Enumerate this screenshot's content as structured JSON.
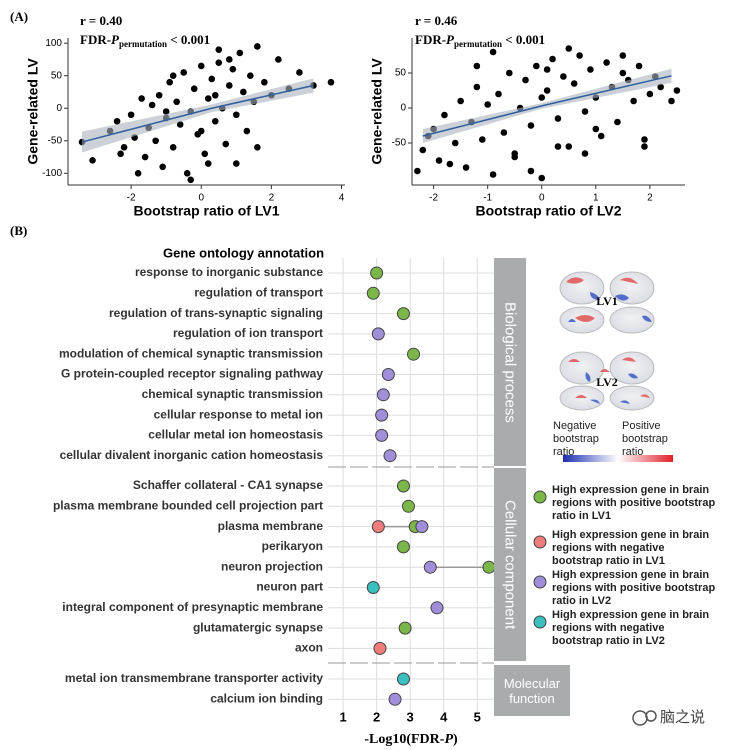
{
  "panel_labels": [
    "(A)",
    "(B)"
  ],
  "chart_data": [
    {
      "type": "scatter",
      "annotation_r": "r = 0.40",
      "annotation_fdr": {
        "prefix": "FDR-",
        "p": "P",
        "sub": "permutation",
        "suffix": " < 0.001"
      },
      "xlabel": "Bootstrap ratio of LV1",
      "ylabel": "Gene-related LV",
      "xlim": [
        -3.8,
        4.1
      ],
      "xticks": [
        -2,
        0,
        2,
        4
      ],
      "ylim": [
        -118,
        108
      ],
      "yticks": [
        -100,
        -50,
        0,
        50,
        100
      ],
      "color": "#000000",
      "x": [
        -3.4,
        -3.1,
        -2.6,
        -2.4,
        -2.2,
        -2.0,
        -1.9,
        -1.7,
        -1.6,
        -1.5,
        -1.4,
        -1.3,
        -1.2,
        -1.1,
        -1.0,
        -0.9,
        -0.8,
        -0.7,
        -0.6,
        -0.5,
        -0.4,
        -0.3,
        -0.2,
        -0.1,
        0.0,
        0.1,
        0.2,
        0.3,
        0.4,
        0.5,
        0.6,
        0.7,
        0.8,
        0.9,
        1.0,
        1.1,
        1.2,
        1.3,
        1.4,
        1.5,
        1.6,
        1.8,
        2.0,
        2.2,
        2.5,
        2.8,
        3.2,
        3.7,
        -1.8,
        -0.3,
        0.2,
        0.5,
        1.0,
        -0.8,
        0.0,
        1.6,
        -2.3,
        0.8,
        -1.0,
        0.4
      ],
      "y": [
        -52,
        -80,
        -35,
        -20,
        -60,
        -10,
        -45,
        15,
        -75,
        -30,
        5,
        -50,
        20,
        -90,
        -15,
        40,
        -60,
        10,
        -25,
        55,
        -100,
        -5,
        30,
        -40,
        65,
        -70,
        15,
        45,
        -20,
        70,
        0,
        -55,
        35,
        60,
        -10,
        85,
        25,
        -35,
        50,
        10,
        -60,
        40,
        20,
        75,
        30,
        55,
        35,
        40,
        -100,
        -110,
        -85,
        90,
        -85,
        50,
        -35,
        95,
        -70,
        75,
        -5,
        20
      ],
      "fit": {
        "x": [
          -3.4,
          0.3,
          3.2
        ],
        "y": [
          -52,
          0,
          35
        ],
        "lower": [
          -68,
          -6,
          24
        ],
        "upper": [
          -36,
          6,
          46
        ],
        "color": "#2f5f9e",
        "band_color": "#a9b3bd"
      }
    },
    {
      "type": "scatter",
      "annotation_r": "r = 0.46",
      "annotation_fdr": {
        "prefix": "FDR-",
        "p": "P",
        "sub": "permutation",
        "suffix": " < 0.001"
      },
      "xlabel": "Bootstrap ratio of LV2",
      "ylabel": "Gene-related LV",
      "xlim": [
        -2.4,
        2.65
      ],
      "xticks": [
        -2,
        -1,
        0,
        1,
        2
      ],
      "ylim": [
        -110,
        100
      ],
      "yticks": [
        -50,
        0,
        50
      ],
      "color": "#000000",
      "x": [
        -2.3,
        -2.2,
        -2.0,
        -1.9,
        -1.8,
        -1.6,
        -1.5,
        -1.4,
        -1.3,
        -1.2,
        -1.1,
        -1.0,
        -0.9,
        -0.8,
        -0.7,
        -0.6,
        -0.5,
        -0.4,
        -0.3,
        -0.2,
        -0.1,
        0.0,
        0.1,
        0.2,
        0.3,
        0.4,
        0.5,
        0.6,
        0.7,
        0.8,
        0.9,
        1.0,
        1.1,
        1.2,
        1.3,
        1.4,
        1.5,
        1.6,
        1.7,
        1.8,
        1.9,
        2.0,
        2.1,
        2.2,
        2.4,
        2.5,
        -1.7,
        -0.9,
        -0.5,
        0.0,
        0.5,
        1.0,
        -1.2,
        0.3,
        1.5,
        -0.2,
        0.8,
        -2.1,
        1.9,
        0.1
      ],
      "y": [
        -90,
        -60,
        -30,
        -75,
        -10,
        -50,
        10,
        -85,
        -20,
        30,
        -45,
        5,
        -95,
        20,
        -35,
        50,
        -65,
        0,
        40,
        -25,
        60,
        -100,
        25,
        70,
        -15,
        45,
        -55,
        35,
        75,
        -5,
        55,
        15,
        -40,
        65,
        30,
        -20,
        50,
        40,
        10,
        60,
        -45,
        20,
        45,
        30,
        10,
        25,
        -80,
        80,
        -70,
        15,
        85,
        -30,
        60,
        -55,
        75,
        -90,
        -65,
        -40,
        -55,
        55
      ],
      "fit": {
        "x": [
          -2.2,
          0,
          2.4
        ],
        "y": [
          -40,
          3,
          46
        ],
        "lower": [
          -50,
          -1,
          36
        ],
        "upper": [
          -30,
          7,
          56
        ],
        "color": "#2f5f9e",
        "band_color": "#a9b3bd"
      }
    },
    {
      "type": "dot",
      "header": "Gene ontology annotation",
      "xlabel": {
        "prefix": "-Log10(FDR-",
        "p": "P",
        "suffix": ")"
      },
      "xlim": [
        0.55,
        5.5
      ],
      "xticks": [
        1,
        2,
        3,
        4,
        5
      ],
      "groups": [
        {
          "name": "Biological process",
          "categories": [
            "response to inorganic substance",
            "regulation of transport",
            "regulation of trans-synaptic signaling",
            "regulation of ion transport",
            "modulation of chemical synaptic transmission",
            "G protein-coupled receptor signaling pathway",
            "chemical synaptic transmission",
            "cellular response to metal ion",
            "cellular metal ion homeostasis",
            "cellular divalent inorganic cation homeostasis"
          ]
        },
        {
          "name": "Cellular component",
          "categories": [
            "Schaffer collateral - CA1 synapse",
            "plasma membrane bounded cell projection part",
            "plasma membrane",
            "perikaryon",
            "neuron projection",
            "neuron part",
            "integral component of presynaptic membrane",
            "glutamatergic synapse",
            "axon"
          ]
        },
        {
          "name": "Molecular function",
          "categories": [
            "metal ion transmembrane transporter activity",
            "calcium ion binding"
          ]
        }
      ],
      "series": [
        {
          "name": "High expression gene in brain regions with positive bootstrap ratio in LV1",
          "color": "#7ab648",
          "values": [
            [
              2.0,
              1.9,
              2.8,
              null,
              3.1,
              null,
              null,
              null,
              null,
              null
            ],
            [
              2.8,
              2.95,
              3.15,
              2.8,
              5.35,
              null,
              null,
              2.85,
              null
            ],
            [
              null,
              null
            ]
          ]
        },
        {
          "name": "High expression gene in brain regions with negative bootstrap ratio in LV1",
          "color": "#ee7d7b",
          "values": [
            [
              null,
              null,
              null,
              null,
              null,
              null,
              null,
              null,
              null,
              null
            ],
            [
              null,
              null,
              2.05,
              null,
              null,
              null,
              null,
              null,
              2.1
            ],
            [
              null,
              null
            ]
          ]
        },
        {
          "name": "High expression gene in brain regions with positive bootstrap ratio in LV2",
          "color": "#a08fd8",
          "values": [
            [
              null,
              null,
              null,
              2.05,
              null,
              2.35,
              2.2,
              2.15,
              2.15,
              2.4
            ],
            [
              null,
              null,
              3.35,
              null,
              3.6,
              null,
              3.8,
              null,
              null
            ],
            [
              null,
              2.55
            ]
          ]
        },
        {
          "name": "High expression gene in brain regions with negative bootstrap ratio in LV2",
          "color": "#3bbfbf",
          "values": [
            [
              null,
              null,
              null,
              null,
              null,
              null,
              null,
              null,
              null,
              null
            ],
            [
              null,
              null,
              null,
              null,
              null,
              1.9,
              null,
              null,
              null
            ],
            [
              2.8,
              null
            ]
          ]
        }
      ],
      "brain_legend": {
        "maps": [
          "LV1",
          "LV2"
        ],
        "negative": "Negative bootstrap ratio",
        "positive": "Positive bootstrap ratio"
      }
    }
  ],
  "watermark": "脑之说"
}
